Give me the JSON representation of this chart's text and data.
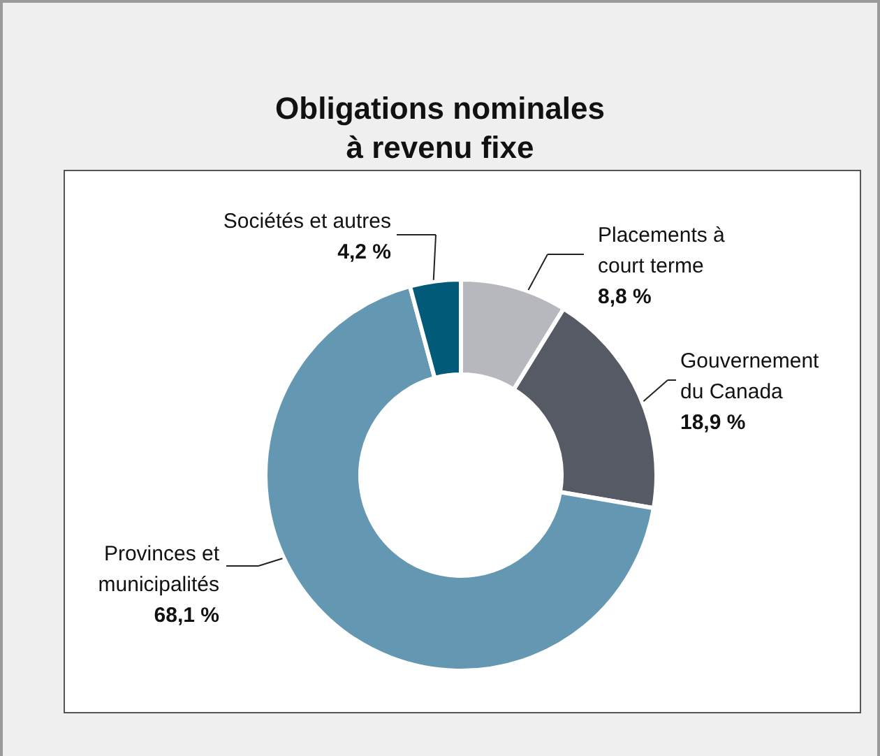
{
  "chart_data": {
    "type": "donut",
    "title": "Obligations nominales à revenu fixe",
    "categories": [
      "Placements à court terme",
      "Gouvernement du Canada",
      "Provinces et municipalités",
      "Sociétés et autres"
    ],
    "values": [
      8.8,
      18.9,
      68.1,
      4.2
    ],
    "colors": [
      "#b6b8bd",
      "#555a65",
      "#6497b2",
      "#005a78"
    ],
    "value_labels": [
      "8,8 %",
      "18,9 %",
      "68,1 %",
      "4,2 %"
    ]
  }
}
